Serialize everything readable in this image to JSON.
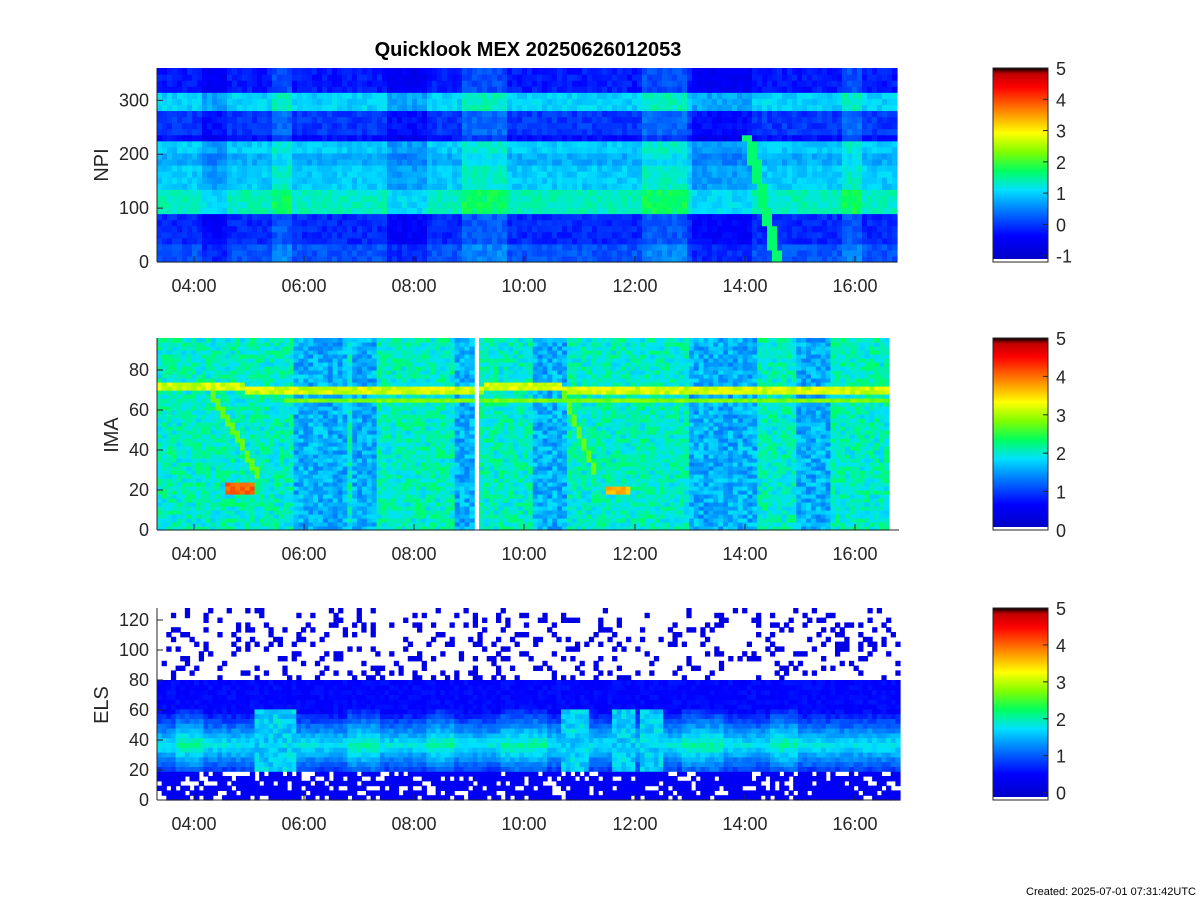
{
  "figure": {
    "title": "Quicklook MEX 20250626012053",
    "created": "Created: 2025-07-01 07:31:42UTC"
  },
  "chart_data": [
    {
      "type": "heatmap",
      "id": "npi",
      "ylabel": "NPI",
      "xlim": [
        "03:20",
        "16:45"
      ],
      "ylim": [
        0,
        360
      ],
      "yticks": [
        0,
        100,
        200,
        300
      ],
      "xticks": [
        "04:00",
        "06:00",
        "08:00",
        "10:00",
        "12:00",
        "14:00",
        "16:00"
      ],
      "colorbar": {
        "range": [
          -1.2,
          5
        ],
        "ticks": [
          -1,
          0,
          1,
          2,
          3,
          4,
          5
        ]
      },
      "data_gaps": [],
      "features": [
        {
          "name": "bright horizontal band",
          "y_range": [
            95,
            135
          ],
          "level": 1.5
        },
        {
          "name": "bright horizontal band",
          "y_range": [
            140,
            230
          ],
          "level": 1.2
        },
        {
          "name": "bright horizontal band",
          "y_range": [
            285,
            320
          ],
          "level": 1.1
        },
        {
          "name": "diagonal streak",
          "from": [
            "14:00",
            240
          ],
          "to": [
            "14:35",
            0
          ],
          "level": 1.5
        }
      ]
    },
    {
      "type": "heatmap",
      "id": "ima",
      "ylabel": "IMA",
      "xlim": [
        "03:20",
        "16:48"
      ],
      "ylim": [
        0,
        96
      ],
      "yticks": [
        0,
        20,
        40,
        60,
        80
      ],
      "xticks": [
        "04:00",
        "06:00",
        "08:00",
        "10:00",
        "12:00",
        "14:00",
        "16:00"
      ],
      "colorbar": {
        "range": [
          0,
          5
        ],
        "ticks": [
          0,
          1,
          2,
          3,
          4,
          5
        ]
      },
      "data_gaps": [
        [
          "09:00",
          "09:06"
        ]
      ],
      "features": [
        {
          "name": "main ion line",
          "y": 70,
          "level": 3.0
        },
        {
          "name": "low-energy ion spot",
          "time": [
            "04:40",
            "05:05"
          ],
          "y": 21,
          "level": 4.0
        },
        {
          "name": "low-energy ion spot",
          "time": [
            "11:40",
            "12:00"
          ],
          "y": 20,
          "level": 3.6
        }
      ]
    },
    {
      "type": "heatmap",
      "id": "els",
      "ylabel": "ELS",
      "xlim": [
        "03:20",
        "16:50"
      ],
      "ylim": [
        0,
        128
      ],
      "yticks": [
        0,
        20,
        40,
        60,
        80,
        100,
        120
      ],
      "xticks": [
        "04:00",
        "06:00",
        "08:00",
        "10:00",
        "12:00",
        "14:00",
        "16:00"
      ],
      "colorbar": {
        "range": [
          -0.2,
          5
        ],
        "ticks": [
          0,
          1,
          2,
          3,
          4,
          5
        ]
      },
      "data_gaps": [],
      "features": [
        {
          "name": "electron core band",
          "y_range": [
            20,
            55
          ],
          "level": 1.8
        },
        {
          "name": "electron burst",
          "time": [
            "05:25",
            "05:50"
          ],
          "level": 2.0
        },
        {
          "name": "electron burst",
          "time": [
            "10:45",
            "11:15"
          ],
          "level": 2.0
        },
        {
          "name": "electron burst",
          "time": [
            "12:05",
            "12:35"
          ],
          "level": 2.0
        }
      ]
    }
  ],
  "colors": {
    "colormap": [
      "#ffffff",
      "#0000ff",
      "#00ff00",
      "#ffff00",
      "#ff0000",
      "#000000"
    ],
    "axis": "#262626"
  }
}
